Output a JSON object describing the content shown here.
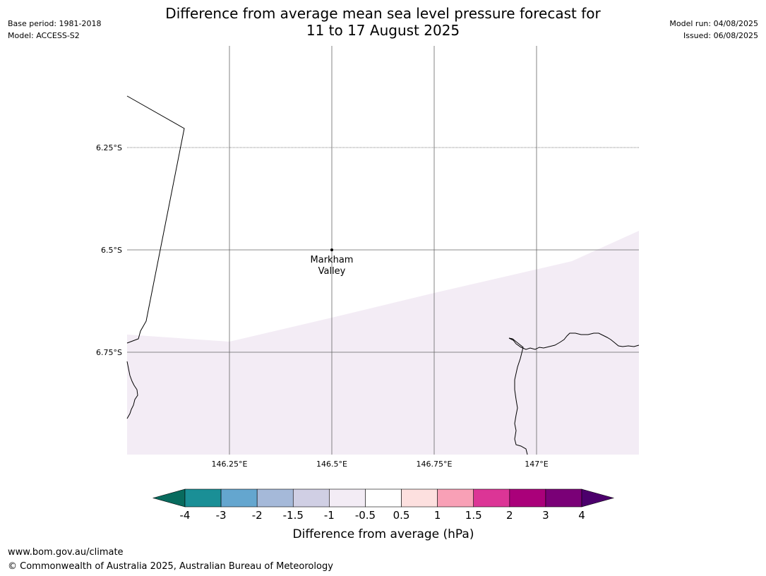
{
  "header": {
    "title_line1": "Difference from average mean sea level pressure forecast for",
    "title_line2": "11 to 17 August 2025",
    "base_period": "Base period: 1981-2018",
    "model": "Model: ACCESS-S2",
    "model_run": "Model run: 04/08/2025",
    "issued": "Issued: 06/08/2025"
  },
  "map": {
    "lat_labels": [
      "6.25°S",
      "6.5°S",
      "6.75°S"
    ],
    "lon_labels": [
      "146.25°E",
      "146.5°E",
      "146.75°E",
      "147°E"
    ],
    "place": {
      "name_line1": "Markham",
      "name_line2": "Valley",
      "lon": 146.5,
      "lat": -6.5
    },
    "fill_color": "#f3ecf5"
  },
  "colorbar": {
    "tick_labels": [
      "-4",
      "-3",
      "-2",
      "-1.5",
      "-1",
      "-0.5",
      "0.5",
      "1",
      "1.5",
      "2",
      "3",
      "4"
    ],
    "colors": [
      "#086b5e",
      "#1a8f96",
      "#64a6cf",
      "#a5b9d9",
      "#d0cfe4",
      "#f3ecf5",
      "#ffffff",
      "#fde0df",
      "#f8a0b6",
      "#dc3596",
      "#aa007a",
      "#7a0077",
      "#4c006c"
    ],
    "label": "Difference from average (hPa)"
  },
  "footer": {
    "url": "www.bom.gov.au/climate",
    "copyright": "© Commonwealth of Australia 2025, Australian Bureau of Meteorology"
  }
}
